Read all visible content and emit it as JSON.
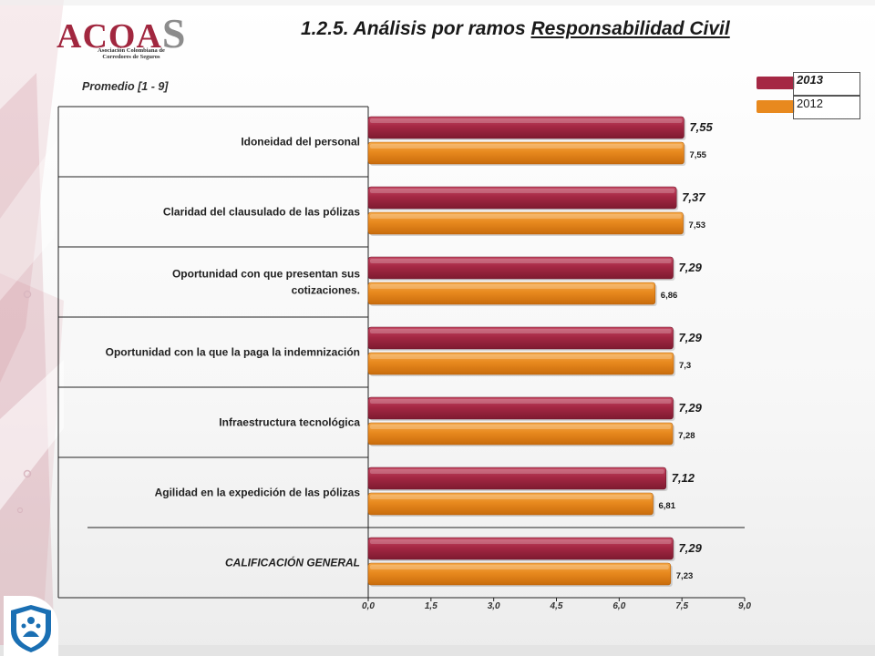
{
  "logo": {
    "wordmark": "ACOA",
    "wordmark_s": "S",
    "line1": "Asociación Colombiana de",
    "line2": "Corredores de Seguros"
  },
  "slide": {
    "title_plain": "1.2.5. Análisis por ramos ",
    "title_underlined": "Responsabilidad Civil",
    "subtitle": "Promedio  [1 - 9]"
  },
  "legend": [
    {
      "label": "2013",
      "color": "#a52844"
    },
    {
      "label": "2012",
      "color": "#e8891e"
    }
  ],
  "colors": {
    "series_2013": "#a52844",
    "series_2012": "#e8891e",
    "brand": "#a1273f",
    "icon_blue": "#1a6fb3"
  },
  "icons": {
    "badge": "shield-people-icon"
  },
  "chart_data": {
    "type": "bar",
    "orientation": "horizontal",
    "categories": [
      "Idoneidad del personal",
      "Claridad del clausulado de las pólizas",
      "Oportunidad con que presentan sus cotizaciones.",
      "Oportunidad con la que la paga la indemnización",
      "Infraestructura tecnológica",
      "Agilidad en la expedición de las pólizas",
      "CALIFICACIÓN GENERAL"
    ],
    "category_lines": [
      [
        "Idoneidad del personal"
      ],
      [
        "Claridad del clausulado de las pólizas"
      ],
      [
        "Oportunidad con que presentan sus",
        "cotizaciones."
      ],
      [
        "Oportunidad con la que la paga la indemnización"
      ],
      [
        "Infraestructura tecnológica"
      ],
      [
        "Agilidad en la expedición de las pólizas"
      ],
      [
        "CALIFICACIÓN GENERAL"
      ]
    ],
    "series": [
      {
        "name": "2013",
        "values": [
          7.55,
          7.37,
          7.29,
          7.29,
          7.29,
          7.12,
          7.29
        ],
        "labels": [
          "7,55",
          "7,37",
          "7,29",
          "7,29",
          "7,29",
          "7,12",
          "7,29"
        ]
      },
      {
        "name": "2012",
        "values": [
          7.55,
          7.53,
          6.86,
          7.3,
          7.28,
          6.81,
          7.23
        ],
        "labels": [
          "7,55",
          "7,53",
          "6,86",
          "7,3",
          "7,28",
          "6,81",
          "7,23"
        ]
      }
    ],
    "xlim": [
      0,
      9
    ],
    "ticks": [
      0,
      1.5,
      3,
      4.5,
      6,
      7.5,
      9
    ],
    "tick_labels": [
      "0,0",
      "1,5",
      "3,0",
      "4,5",
      "6,0",
      "7,5",
      "9,0"
    ],
    "grid": false,
    "legend_position": "top-right"
  }
}
